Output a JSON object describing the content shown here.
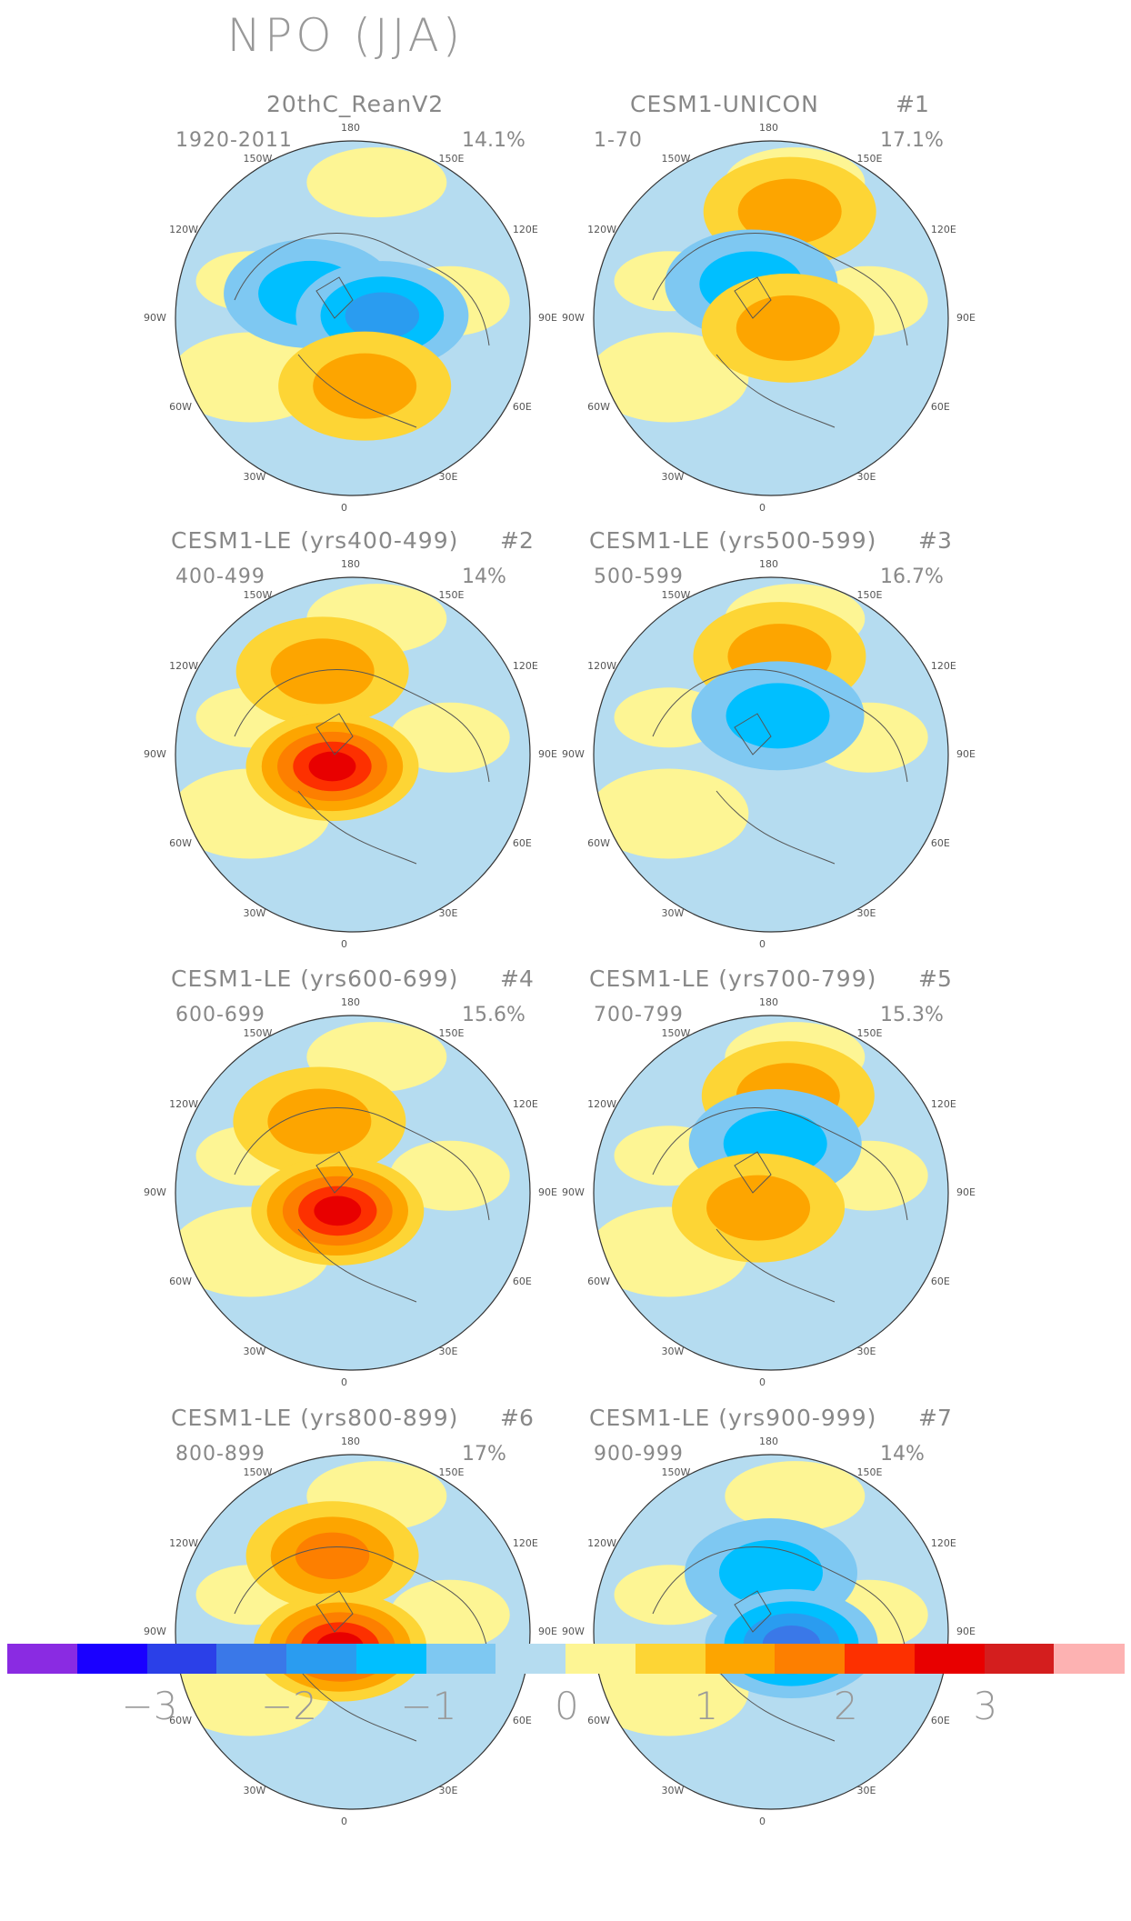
{
  "title": "NPO (JJA)",
  "lon_labels": {
    "top": "180",
    "tl": "150W",
    "tr": "150E",
    "l1": "120W",
    "r1": "120E",
    "l2": "90W",
    "r2": "90E",
    "l3": "60W",
    "r3": "60E",
    "bl": "30W",
    "br": "30E",
    "bottom": "0"
  },
  "panels": [
    {
      "title": "20thC_ReanV2",
      "num": "",
      "period": "1920-2011",
      "pct": "14.1%",
      "features": [
        {
          "type": "neg",
          "level": 2,
          "lat": 65,
          "lon": -120
        },
        {
          "type": "neg",
          "level": 3,
          "lat": 75,
          "lon": 95
        },
        {
          "type": "pos",
          "level": 2,
          "lat": 55,
          "lon": 10
        }
      ]
    },
    {
      "title": "CESM1-UNICON",
      "num": "#1",
      "period": "1-70",
      "pct": "17.1%",
      "features": [
        {
          "type": "pos",
          "level": 2,
          "lat": 35,
          "lon": 170
        },
        {
          "type": "neg",
          "level": 2,
          "lat": 70,
          "lon": -150
        },
        {
          "type": "pos",
          "level": 2,
          "lat": 80,
          "lon": 60
        }
      ]
    },
    {
      "title": "CESM1-LE (yrs400-499)",
      "num": "#2",
      "period": "400-499",
      "pct": "14%",
      "features": [
        {
          "type": "pos",
          "level": 2,
          "lat": 45,
          "lon": -160
        },
        {
          "type": "pos",
          "level": 5,
          "lat": 78,
          "lon": -60
        }
      ]
    },
    {
      "title": "CESM1-LE (yrs500-599)",
      "num": "#3",
      "period": "500-599",
      "pct": "16.7%",
      "features": [
        {
          "type": "pos",
          "level": 2,
          "lat": 40,
          "lon": 175
        },
        {
          "type": "neg",
          "level": 2,
          "lat": 70,
          "lon": 170
        }
      ]
    },
    {
      "title": "CESM1-LE (yrs600-699)",
      "num": "#4",
      "period": "600-699",
      "pct": "15.6%",
      "features": [
        {
          "type": "pos",
          "level": 2,
          "lat": 50,
          "lon": -155
        },
        {
          "type": "pos",
          "level": 5,
          "lat": 78,
          "lon": -40
        }
      ]
    },
    {
      "title": "CESM1-LE (yrs700-799)",
      "num": "#5",
      "period": "700-799",
      "pct": "15.3%",
      "features": [
        {
          "type": "pos",
          "level": 2,
          "lat": 40,
          "lon": 170
        },
        {
          "type": "neg",
          "level": 2,
          "lat": 65,
          "lon": 175
        },
        {
          "type": "pos",
          "level": 2,
          "lat": 80,
          "lon": -40
        }
      ]
    },
    {
      "title": "CESM1-LE (yrs800-899)",
      "num": "#6",
      "period": "800-899",
      "pct": "17%",
      "features": [
        {
          "type": "pos",
          "level": 3,
          "lat": 50,
          "lon": -165
        },
        {
          "type": "pos",
          "level": 5,
          "lat": 80,
          "lon": -40
        }
      ]
    },
    {
      "title": "CESM1-LE (yrs900-999)",
      "num": "#7",
      "period": "900-999",
      "pct": "14%",
      "features": [
        {
          "type": "neg",
          "level": 2,
          "lat": 60,
          "lon": 180
        },
        {
          "type": "neg",
          "level": 4,
          "lat": 78,
          "lon": 60
        }
      ]
    }
  ],
  "colorbar": {
    "colors": [
      "#8a2be2",
      "#1a00ff",
      "#2b40e8",
      "#3a78e8",
      "#2a9cf0",
      "#00bfff",
      "#7ec8f2",
      "#b5dcf0",
      "#fdf594",
      "#fdd535",
      "#fda500",
      "#fd7f00",
      "#fd3000",
      "#e80000",
      "#d41e1e",
      "#fdb2b2"
    ],
    "ticks": [
      "−3",
      "−2",
      "−1",
      "0",
      "1",
      "2",
      "3"
    ]
  }
}
